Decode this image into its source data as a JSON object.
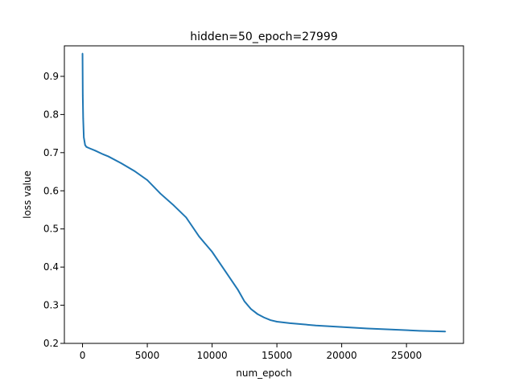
{
  "chart_data": {
    "type": "line",
    "title": "hidden=50_epoch=27999",
    "xlabel": "num_epoch",
    "ylabel": "loss value",
    "xlim": [
      -1400,
      29400
    ],
    "ylim": [
      0.2,
      0.98
    ],
    "xticks": [
      0,
      5000,
      10000,
      15000,
      20000,
      25000
    ],
    "xtick_labels": [
      "0",
      "5000",
      "10000",
      "15000",
      "20000",
      "25000"
    ],
    "yticks": [
      0.2,
      0.3,
      0.4,
      0.5,
      0.6,
      0.7,
      0.8,
      0.9
    ],
    "ytick_labels": [
      "0.2",
      "0.3",
      "0.4",
      "0.5",
      "0.6",
      "0.7",
      "0.8",
      "0.9"
    ],
    "grid": false,
    "line_color": "#1f77b4",
    "series": [
      {
        "x": [
          0,
          20,
          50,
          100,
          150,
          200,
          300,
          500,
          1000,
          1500,
          2000,
          3000,
          4000,
          5000,
          6000,
          7000,
          8000,
          9000,
          10000,
          11000,
          12000,
          12500,
          13000,
          13500,
          14000,
          14500,
          15000,
          16000,
          18000,
          20000,
          22000,
          24000,
          26000,
          27999
        ],
        "y": [
          0.96,
          0.85,
          0.79,
          0.74,
          0.73,
          0.72,
          0.715,
          0.712,
          0.705,
          0.697,
          0.69,
          0.672,
          0.652,
          0.628,
          0.593,
          0.563,
          0.53,
          0.48,
          0.44,
          0.39,
          0.34,
          0.31,
          0.29,
          0.277,
          0.268,
          0.261,
          0.257,
          0.253,
          0.247,
          0.243,
          0.239,
          0.236,
          0.233,
          0.231
        ]
      }
    ]
  }
}
